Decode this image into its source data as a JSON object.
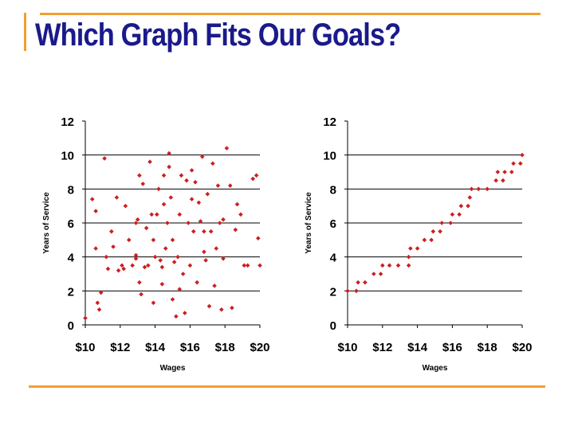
{
  "slide": {
    "title": "Which Graph Fits Our Goals?",
    "accent_color": "#f0a030",
    "title_color": "#1a1a8c",
    "marker_color": "#cc1f1f"
  },
  "chart_data": [
    {
      "type": "scatter",
      "title": "",
      "xlabel": "Wages",
      "ylabel": "Years of Service",
      "xlim": [
        10,
        20
      ],
      "ylim": [
        0,
        12
      ],
      "xticks": [
        10,
        12,
        14,
        16,
        18,
        20
      ],
      "xtick_labels": [
        "$10",
        "$12",
        "$14",
        "$16",
        "$18",
        "$20"
      ],
      "yticks": [
        0,
        2,
        4,
        6,
        8,
        10,
        12
      ],
      "grid": "horizontal",
      "series": [
        {
          "points": [
            [
              10.0,
              0.4
            ],
            [
              10.4,
              7.4
            ],
            [
              10.6,
              6.7
            ],
            [
              10.7,
              1.3
            ],
            [
              10.8,
              0.9
            ],
            [
              10.6,
              4.5
            ],
            [
              10.9,
              1.9
            ],
            [
              11.1,
              9.8
            ],
            [
              11.2,
              4.0
            ],
            [
              11.3,
              3.3
            ],
            [
              11.5,
              5.5
            ],
            [
              11.6,
              4.6
            ],
            [
              11.8,
              7.5
            ],
            [
              11.9,
              3.2
            ],
            [
              12.1,
              3.5
            ],
            [
              12.2,
              3.3
            ],
            [
              12.3,
              7.0
            ],
            [
              12.5,
              5.0
            ],
            [
              12.7,
              3.5
            ],
            [
              12.9,
              3.9
            ],
            [
              12.9,
              6.0
            ],
            [
              13.0,
              6.2
            ],
            [
              13.1,
              8.8
            ],
            [
              13.1,
              2.5
            ],
            [
              13.2,
              1.8
            ],
            [
              13.3,
              8.3
            ],
            [
              13.4,
              3.4
            ],
            [
              13.5,
              5.7
            ],
            [
              13.6,
              3.5
            ],
            [
              13.7,
              9.6
            ],
            [
              13.8,
              6.5
            ],
            [
              13.9,
              5.0
            ],
            [
              13.9,
              1.3
            ],
            [
              14.0,
              4.0
            ],
            [
              14.1,
              6.5
            ],
            [
              14.2,
              8.0
            ],
            [
              14.3,
              3.8
            ],
            [
              14.4,
              3.4
            ],
            [
              14.4,
              2.4
            ],
            [
              14.5,
              8.8
            ],
            [
              14.6,
              4.5
            ],
            [
              14.7,
              6.0
            ],
            [
              14.8,
              10.1
            ],
            [
              14.8,
              9.3
            ],
            [
              14.9,
              7.5
            ],
            [
              15.0,
              5.0
            ],
            [
              15.0,
              1.5
            ],
            [
              15.1,
              3.7
            ],
            [
              15.2,
              0.5
            ],
            [
              15.3,
              4.0
            ],
            [
              15.4,
              6.5
            ],
            [
              15.5,
              8.8
            ],
            [
              15.6,
              3.0
            ],
            [
              15.7,
              0.7
            ],
            [
              15.8,
              8.5
            ],
            [
              15.9,
              6.0
            ],
            [
              16.0,
              3.5
            ],
            [
              16.1,
              9.1
            ],
            [
              16.1,
              7.4
            ],
            [
              16.2,
              5.5
            ],
            [
              16.3,
              8.4
            ],
            [
              16.4,
              2.5
            ],
            [
              16.5,
              7.2
            ],
            [
              16.6,
              6.1
            ],
            [
              16.7,
              9.9
            ],
            [
              16.8,
              4.3
            ],
            [
              16.9,
              3.8
            ],
            [
              17.0,
              7.7
            ],
            [
              17.1,
              1.1
            ],
            [
              17.2,
              5.5
            ],
            [
              17.3,
              9.5
            ],
            [
              17.4,
              2.3
            ],
            [
              17.5,
              4.5
            ],
            [
              17.6,
              8.2
            ],
            [
              17.7,
              6.0
            ],
            [
              17.8,
              0.9
            ],
            [
              17.9,
              3.9
            ],
            [
              18.1,
              10.4
            ],
            [
              18.3,
              8.2
            ],
            [
              18.4,
              1.0
            ],
            [
              18.6,
              5.6
            ],
            [
              18.7,
              7.1
            ],
            [
              18.9,
              6.5
            ],
            [
              19.1,
              3.5
            ],
            [
              19.3,
              3.5
            ],
            [
              19.6,
              8.6
            ],
            [
              19.8,
              8.8
            ],
            [
              19.9,
              5.1
            ],
            [
              20.0,
              3.5
            ],
            [
              14.5,
              7.1
            ],
            [
              16.8,
              5.5
            ],
            [
              12.9,
              4.1
            ],
            [
              15.4,
              2.1
            ],
            [
              17.9,
              6.2
            ]
          ]
        }
      ]
    },
    {
      "type": "scatter",
      "title": "",
      "xlabel": "Wages",
      "ylabel": "Years of Service",
      "xlim": [
        10,
        20
      ],
      "ylim": [
        0,
        12
      ],
      "xticks": [
        10,
        12,
        14,
        16,
        18,
        20
      ],
      "xtick_labels": [
        "$10",
        "$12",
        "$14",
        "$16",
        "$18",
        "$20"
      ],
      "yticks": [
        0,
        2,
        4,
        6,
        8,
        10,
        12
      ],
      "grid": "horizontal",
      "series": [
        {
          "points": [
            [
              10.0,
              2.0
            ],
            [
              10.5,
              2.0
            ],
            [
              10.6,
              2.5
            ],
            [
              11.0,
              2.5
            ],
            [
              11.5,
              3.0
            ],
            [
              11.9,
              3.0
            ],
            [
              12.0,
              3.5
            ],
            [
              12.4,
              3.5
            ],
            [
              12.9,
              3.5
            ],
            [
              13.5,
              3.5
            ],
            [
              13.5,
              4.0
            ],
            [
              13.6,
              4.5
            ],
            [
              14.0,
              4.5
            ],
            [
              14.4,
              5.0
            ],
            [
              14.8,
              5.0
            ],
            [
              14.9,
              5.5
            ],
            [
              15.3,
              5.5
            ],
            [
              15.4,
              6.0
            ],
            [
              15.9,
              6.0
            ],
            [
              16.0,
              6.5
            ],
            [
              16.4,
              6.5
            ],
            [
              16.5,
              7.0
            ],
            [
              16.9,
              7.0
            ],
            [
              17.0,
              7.5
            ],
            [
              17.1,
              8.0
            ],
            [
              17.5,
              8.0
            ],
            [
              18.0,
              8.0
            ],
            [
              18.5,
              8.5
            ],
            [
              18.9,
              8.5
            ],
            [
              19.0,
              9.0
            ],
            [
              19.4,
              9.0
            ],
            [
              19.5,
              9.5
            ],
            [
              19.9,
              9.5
            ],
            [
              20.0,
              10.0
            ],
            [
              18.6,
              9.0
            ]
          ]
        }
      ]
    }
  ]
}
